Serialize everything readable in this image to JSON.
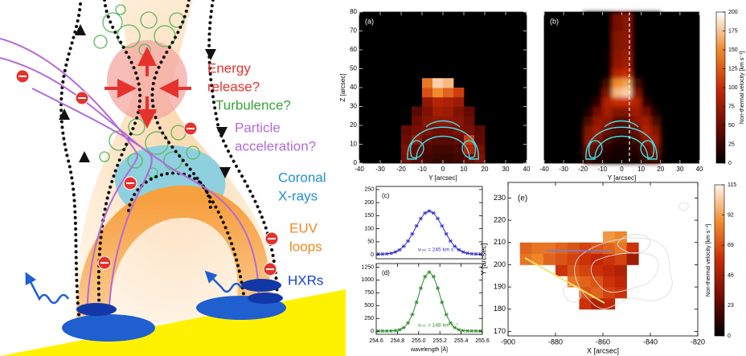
{
  "schematic": {
    "energy_release": [
      "Energy",
      "release?"
    ],
    "turbulence": "Turbulence?",
    "particle_acceleration": [
      "Particle",
      "acceleration?"
    ],
    "coronal_xrays": [
      "Coronal",
      "X-rays"
    ],
    "euv_loops": [
      "EUV",
      "loops"
    ],
    "hxrs": "HXRs"
  },
  "chart_data": [
    {
      "type": "heatmap",
      "label": "(a)",
      "background": "#000000",
      "xlabel": "Y [arcsec]",
      "ylabel": "Z [arcsec]",
      "xlim": [
        -40,
        40
      ],
      "ylim": [
        0,
        80
      ],
      "xticks": [
        -40,
        -30,
        -20,
        -10,
        0,
        10,
        20,
        30,
        40
      ],
      "yticks": [
        0,
        10,
        20,
        30,
        40,
        50,
        60,
        70,
        80
      ],
      "colormap": [
        "#000000",
        "#6e0c02",
        "#c72a06",
        "#f08a2c",
        "#ffffff"
      ],
      "xbins": [
        -20,
        -15,
        -10,
        -5,
        0,
        5,
        10,
        15,
        20
      ],
      "ybins": [
        0,
        5,
        10,
        15,
        20,
        25,
        30,
        35,
        40,
        45
      ],
      "z": [
        [
          55,
          40,
          30,
          25,
          25,
          30,
          45,
          60
        ],
        [
          60,
          45,
          35,
          30,
          30,
          35,
          90,
          55
        ],
        [
          50,
          70,
          45,
          40,
          40,
          45,
          110,
          45
        ],
        [
          45,
          55,
          60,
          50,
          50,
          60,
          55,
          40
        ],
        [
          null,
          50,
          65,
          70,
          70,
          65,
          50,
          null
        ],
        [
          null,
          40,
          60,
          80,
          75,
          60,
          45,
          null
        ],
        [
          null,
          null,
          70,
          90,
          85,
          75,
          null,
          null
        ],
        [
          null,
          null,
          120,
          150,
          130,
          110,
          null,
          null
        ],
        [
          null,
          null,
          140,
          180,
          170,
          null,
          null,
          null
        ]
      ]
    },
    {
      "type": "heatmap",
      "label": "(b)",
      "background": "#000000",
      "smooth": true,
      "xlabel": "Y [arcsec]",
      "xlim": [
        -40,
        40
      ],
      "ylim": [
        0,
        80
      ],
      "xticks": [
        -40,
        -30,
        -20,
        -10,
        0,
        10,
        20,
        30,
        40
      ],
      "colormap": [
        "#000000",
        "#6e0c02",
        "#c72a06",
        "#f08a2c",
        "#ffffff"
      ],
      "xbins": [
        -20,
        -15,
        -10,
        -5,
        0,
        5,
        10,
        15,
        20
      ],
      "ybins": [
        0,
        5,
        10,
        15,
        20,
        25,
        30,
        35,
        40,
        45,
        50,
        55,
        60,
        65,
        70,
        75,
        80
      ],
      "z": [
        [
          30,
          20,
          10,
          10,
          10,
          10,
          30,
          40
        ],
        [
          50,
          30,
          20,
          10,
          10,
          20,
          40,
          60
        ],
        [
          70,
          60,
          30,
          20,
          20,
          30,
          70,
          80
        ],
        [
          60,
          80,
          50,
          30,
          30,
          50,
          90,
          60
        ],
        [
          30,
          70,
          70,
          40,
          40,
          70,
          80,
          30
        ],
        [
          10,
          50,
          80,
          60,
          60,
          80,
          50,
          10
        ],
        [
          0,
          20,
          90,
          100,
          100,
          90,
          20,
          0
        ],
        [
          0,
          0,
          60,
          170,
          180,
          60,
          0,
          0
        ],
        [
          0,
          0,
          30,
          150,
          160,
          30,
          0,
          0
        ],
        [
          0,
          0,
          0,
          90,
          100,
          0,
          0,
          0
        ],
        [
          0,
          0,
          0,
          70,
          80,
          0,
          0,
          0
        ],
        [
          0,
          0,
          0,
          65,
          75,
          0,
          0,
          0
        ],
        [
          0,
          0,
          0,
          60,
          70,
          0,
          0,
          0
        ],
        [
          0,
          0,
          0,
          60,
          70,
          0,
          0,
          0
        ],
        [
          0,
          0,
          0,
          55,
          65,
          0,
          0,
          0
        ],
        [
          0,
          0,
          0,
          55,
          65,
          0,
          0,
          0
        ]
      ],
      "colorbar": {
        "label": "Non-thermal velocity [km s⁻¹]",
        "lim": [
          0,
          200
        ],
        "ticks": [
          0,
          25,
          50,
          75,
          100,
          125,
          150,
          175,
          200
        ]
      }
    },
    {
      "type": "line",
      "label": "(c)",
      "annotation": "vₙₜₕ = 245 km s⁻¹",
      "xlim": [
        254.6,
        255.6
      ],
      "ylim": [
        -15,
        262
      ],
      "yticks": [
        0,
        50,
        100,
        150,
        200,
        250
      ],
      "x": [
        254.62,
        254.66,
        254.7,
        254.74,
        254.78,
        254.82,
        254.86,
        254.9,
        254.94,
        254.98,
        255.02,
        255.06,
        255.1,
        255.14,
        255.18,
        255.22,
        255.26,
        255.3,
        255.34,
        255.38,
        255.42,
        255.46,
        255.5,
        255.54,
        255.58
      ],
      "series": [
        {
          "color": "#2b2bcf",
          "values": [
            3,
            3,
            4,
            6,
            11,
            19,
            33,
            53,
            80,
            111,
            139,
            160,
            168,
            160,
            139,
            111,
            80,
            53,
            33,
            19,
            11,
            6,
            4,
            3,
            3
          ]
        }
      ]
    },
    {
      "type": "line",
      "label": "(d)",
      "annotation": "vₙₜₕ = 148 km s⁻¹",
      "xlabel": "wavelength [Å]",
      "xlim": [
        254.6,
        255.6
      ],
      "ylim": [
        -60,
        1320
      ],
      "xticks": [
        254.6,
        254.8,
        {
          "value": 255,
          "label": "255.0"
        },
        255.2,
        255.4,
        255.6
      ],
      "yticks": [
        0,
        250,
        500,
        750,
        1000,
        1250
      ],
      "x": [
        254.62,
        254.66,
        254.7,
        254.74,
        254.78,
        254.82,
        254.86,
        254.9,
        254.94,
        254.98,
        255.02,
        255.06,
        255.1,
        255.14,
        255.18,
        255.22,
        255.26,
        255.3,
        255.34,
        255.38,
        255.42,
        255.46,
        255.5,
        255.54,
        255.58
      ],
      "series": [
        {
          "color": "#2a8a2a",
          "values": [
            5,
            5,
            5,
            7,
            12,
            28,
            70,
            161,
            325,
            565,
            840,
            1067,
            1155,
            1067,
            840,
            565,
            325,
            161,
            70,
            28,
            12,
            7,
            5,
            5,
            5
          ]
        }
      ]
    },
    {
      "type": "heatmap",
      "label": "(e)",
      "background": "#ffffff",
      "xlabel": "X [arcsec]",
      "ylabel": "Y [arcsec]",
      "xlim": [
        -900,
        -820
      ],
      "ylim": [
        168,
        237
      ],
      "xticks": [
        -900,
        -880,
        -860,
        -840,
        -820
      ],
      "yticks": [
        170,
        180,
        190,
        200,
        210,
        220,
        230
      ],
      "colormap": [
        "#000000",
        "#6e0c02",
        "#c72a06",
        "#f08a2c",
        "#fff4e8"
      ],
      "xbins": [
        -895,
        -890,
        -885,
        -880,
        -875,
        -870,
        -865,
        -860,
        -855,
        -850,
        -845,
        -840
      ],
      "ybins": [
        175,
        180,
        185,
        190,
        195,
        200,
        205,
        210,
        215
      ],
      "z": [
        [
          null,
          null,
          null,
          null,
          null,
          null,
          null,
          null,
          null,
          null,
          null
        ],
        [
          null,
          null,
          null,
          null,
          null,
          60,
          50,
          55,
          null,
          null,
          null
        ],
        [
          null,
          null,
          null,
          null,
          null,
          70,
          75,
          65,
          60,
          null,
          null
        ],
        [
          null,
          null,
          null,
          null,
          80,
          75,
          70,
          60,
          55,
          null,
          null
        ],
        [
          null,
          null,
          null,
          60,
          70,
          65,
          60,
          55,
          50,
          null,
          null
        ],
        [
          80,
          85,
          75,
          70,
          65,
          60,
          55,
          60,
          65,
          45,
          null
        ],
        [
          75,
          80,
          80,
          75,
          70,
          65,
          70,
          75,
          80,
          60,
          null
        ],
        [
          null,
          null,
          null,
          null,
          null,
          null,
          null,
          90,
          85,
          null,
          null
        ]
      ],
      "colorbar": {
        "label": "Non-thermal velocity [km s⁻¹]",
        "lim": [
          0,
          115
        ],
        "ticks": [
          0,
          23,
          46,
          69,
          92,
          115
        ]
      }
    }
  ]
}
